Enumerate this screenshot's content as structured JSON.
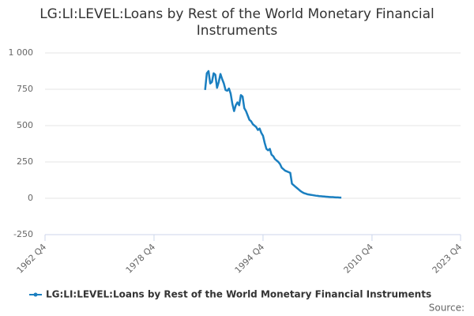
{
  "chart_data": {
    "type": "line",
    "title": "LG:LI:LEVEL:Loans by Rest of the World Monetary Financial Instruments",
    "source": "Source:",
    "x": [
      "1986 Q2",
      "1986 Q3",
      "1986 Q4",
      "1987 Q1",
      "1987 Q2",
      "1987 Q3",
      "1987 Q4",
      "1988 Q1",
      "1988 Q2",
      "1988 Q3",
      "1988 Q4",
      "1989 Q1",
      "1989 Q2",
      "1989 Q3",
      "1989 Q4",
      "1990 Q1",
      "1990 Q2",
      "1990 Q3",
      "1990 Q4",
      "1991 Q1",
      "1991 Q2",
      "1991 Q3",
      "1991 Q4",
      "1992 Q1",
      "1992 Q2",
      "1992 Q3",
      "1992 Q4",
      "1993 Q1",
      "1993 Q2",
      "1993 Q3",
      "1993 Q4",
      "1994 Q1",
      "1994 Q2",
      "1994 Q3",
      "1994 Q4",
      "1995 Q1",
      "1995 Q2",
      "1995 Q3",
      "1995 Q4",
      "1996 Q1",
      "1996 Q2",
      "1996 Q3",
      "1996 Q4",
      "1997 Q1",
      "1997 Q2",
      "1997 Q3",
      "1997 Q4",
      "1998 Q1",
      "1998 Q2",
      "1998 Q3",
      "1998 Q4",
      "1999 Q1",
      "1999 Q2",
      "1999 Q3",
      "1999 Q4",
      "2000 Q1",
      "2000 Q2",
      "2000 Q3",
      "2000 Q4",
      "2001 Q1",
      "2001 Q2",
      "2001 Q3",
      "2001 Q4",
      "2002 Q1",
      "2002 Q2",
      "2002 Q3",
      "2002 Q4",
      "2003 Q1",
      "2003 Q2",
      "2003 Q3",
      "2003 Q4",
      "2004 Q1",
      "2004 Q2",
      "2004 Q3",
      "2004 Q4",
      "2005 Q1",
      "2005 Q2",
      "2005 Q3",
      "2005 Q4",
      "2006 Q1",
      "2006 Q2"
    ],
    "series": [
      {
        "name": "LG:LI:LEVEL:Loans by Rest of the World Monetary Financial Instruments",
        "color": "#1a7fc0",
        "values": [
          745,
          860,
          875,
          790,
          800,
          860,
          850,
          760,
          800,
          855,
          820,
          790,
          745,
          740,
          755,
          720,
          650,
          600,
          640,
          660,
          640,
          710,
          700,
          620,
          600,
          570,
          540,
          530,
          510,
          500,
          490,
          470,
          480,
          450,
          430,
          380,
          340,
          330,
          340,
          300,
          290,
          270,
          260,
          250,
          235,
          210,
          200,
          190,
          185,
          180,
          175,
          100,
          90,
          80,
          70,
          60,
          50,
          42,
          36,
          32,
          28,
          26,
          24,
          22,
          20,
          18,
          17,
          15,
          14,
          13,
          12,
          11,
          10,
          9,
          8,
          8,
          7,
          6,
          6,
          5,
          5
        ]
      }
    ],
    "xlim": [
      "1962 Q4",
      "2023 Q4"
    ],
    "xticks": [
      "1962 Q4",
      "1978 Q4",
      "1994 Q4",
      "2010 Q4",
      "2023 Q4"
    ],
    "ylim": [
      -250,
      1000
    ],
    "yticks": [
      -250,
      0,
      250,
      500,
      750,
      {
        "value": 1000,
        "label": "1 000"
      }
    ],
    "grid": true
  }
}
